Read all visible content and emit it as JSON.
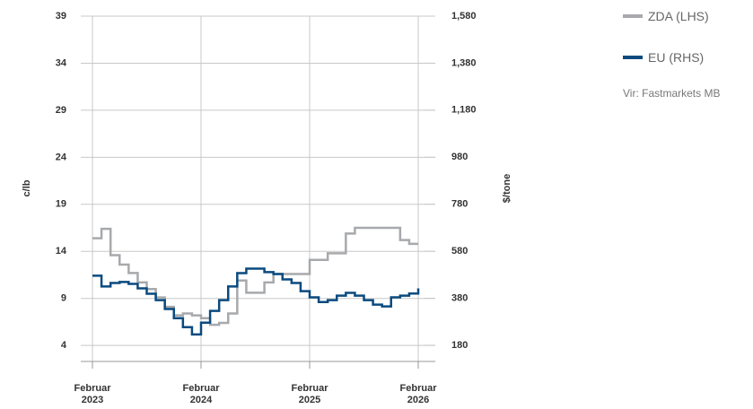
{
  "chart_data": {
    "type": "line",
    "y_label": "c/lb",
    "y2_label": "$/tone",
    "source": "Vir: Fastmarkets MB",
    "x": [
      "2023-02",
      "2023-03",
      "2023-04",
      "2023-05",
      "2023-06",
      "2023-07",
      "2023-08",
      "2023-09",
      "2023-10",
      "2023-11",
      "2023-12",
      "2024-01",
      "2024-02",
      "2024-03",
      "2024-04",
      "2024-05",
      "2024-06",
      "2024-07",
      "2024-08",
      "2024-09",
      "2024-10",
      "2024-11",
      "2024-12",
      "2025-01",
      "2025-02",
      "2025-03",
      "2025-04",
      "2025-05",
      "2025-06",
      "2025-07",
      "2025-08",
      "2025-09",
      "2025-10",
      "2025-11",
      "2025-12",
      "2026-01",
      "2026-02"
    ],
    "series": [
      {
        "name": "ZDA (LHS)",
        "color": "#a7a9ac",
        "values": [
          15.4,
          16.4,
          13.6,
          12.6,
          11.7,
          10.7,
          10.0,
          9.1,
          8.1,
          7.2,
          7.4,
          7.2,
          6.9,
          6.2,
          6.4,
          7.4,
          10.9,
          9.6,
          9.6,
          10.7,
          11.6,
          11.6,
          11.6,
          11.6,
          13.1,
          13.1,
          13.8,
          13.8,
          15.9,
          16.5,
          16.5,
          16.5,
          16.5,
          16.5,
          15.2,
          14.8,
          14.8
        ]
      },
      {
        "name": "EU (RHS)",
        "color": "#0a4a7f",
        "axis": "y2",
        "values": [
          476,
          430,
          445,
          449,
          441,
          422,
          399,
          372,
          334,
          295,
          257,
          226,
          276,
          326,
          372,
          430,
          487,
          506,
          506,
          491,
          483,
          460,
          445,
          410,
          384,
          364,
          372,
          391,
          403,
          391,
          372,
          353,
          345,
          384,
          391,
          400,
          422
        ]
      }
    ],
    "xlim": [
      "2023-02",
      "2026-02"
    ],
    "xticks": [
      {
        "value": "2023-02",
        "label": "Februar 2023"
      },
      {
        "value": "2024-02",
        "label": "Februar 2024"
      },
      {
        "value": "2025-02",
        "label": "Februar 2025"
      },
      {
        "value": "2026-02",
        "label": "Februar 2026"
      }
    ],
    "ylim": [
      2.3,
      39
    ],
    "yticks": [
      4,
      9,
      14,
      19,
      24,
      29,
      34,
      39
    ],
    "y2lim": [
      111,
      1580
    ],
    "y2ticks": [
      180,
      380,
      580,
      780,
      980,
      {
        "value": 1180,
        "label": "1,180"
      },
      {
        "value": 1380,
        "label": "1,380"
      },
      {
        "value": 1580,
        "label": "1,580"
      }
    ],
    "grid": true,
    "legend": "right"
  }
}
